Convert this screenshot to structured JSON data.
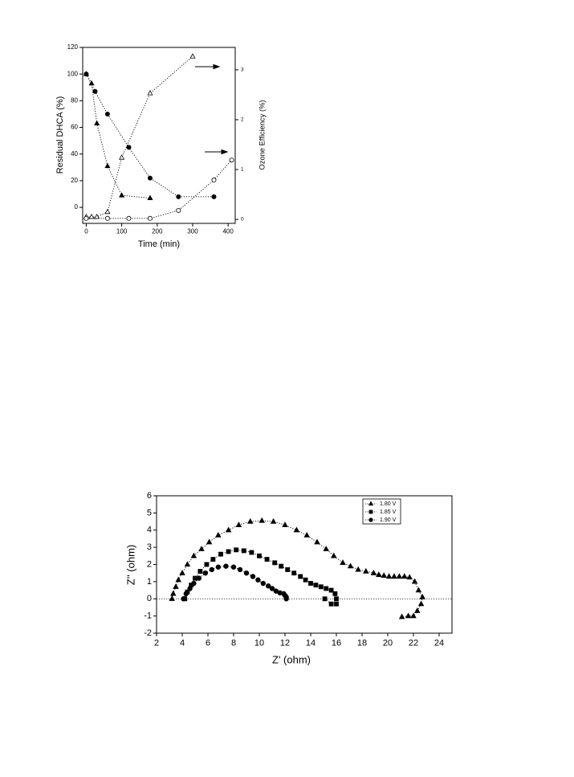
{
  "chart_data": [
    {
      "type": "scatter",
      "xlabel": "Time (min)",
      "ylabel": "Residual DHCA (%)",
      "y2label": "Ozone Efficiency (%)",
      "xlim": [
        -10,
        420
      ],
      "xticks": [
        0,
        100,
        200,
        300,
        400
      ],
      "ylim": [
        -12,
        120
      ],
      "yticks": [
        0,
        20,
        40,
        60,
        80,
        100,
        120
      ],
      "y2lim": [
        -0.08,
        3.45
      ],
      "y2ticks": [
        0,
        1,
        2,
        3
      ],
      "series": [
        {
          "color": "#000000",
          "marker": "triangle",
          "filled": true,
          "line": "dotted",
          "x": [
            0,
            15,
            30,
            60,
            100,
            180
          ],
          "values": [
            100,
            93,
            63,
            31,
            9,
            7
          ]
        },
        {
          "color": "#000000",
          "marker": "circle",
          "filled": true,
          "line": "dotted",
          "x": [
            0,
            25,
            60,
            120,
            180,
            260,
            360
          ],
          "values": [
            100,
            87,
            70,
            45,
            22,
            8,
            8
          ]
        },
        {
          "color": "#000000",
          "marker": "triangle",
          "filled": false,
          "line": "dotted",
          "axis": "y2",
          "x": [
            0,
            15,
            30,
            60,
            100,
            180,
            300
          ],
          "values": [
            0.05,
            0.05,
            0.05,
            0.15,
            1.24,
            2.53,
            3.27
          ]
        },
        {
          "color": "#000000",
          "marker": "circle",
          "filled": false,
          "line": "dotted",
          "axis": "y2",
          "x": [
            0,
            60,
            120,
            180,
            260,
            360,
            410
          ],
          "values": [
            0.02,
            0.02,
            0.02,
            0.02,
            0.18,
            0.79,
            1.19
          ]
        }
      ]
    },
    {
      "type": "scatter",
      "xlabel": "Z' (ohm)",
      "ylabel": "Z'' (ohm)",
      "xlim": [
        2,
        25
      ],
      "xticks": [
        2,
        4,
        6,
        8,
        10,
        12,
        14,
        16,
        18,
        20,
        22,
        24
      ],
      "ylim": [
        -2,
        6
      ],
      "yticks": [
        -2,
        -1,
        0,
        1,
        2,
        3,
        4,
        5,
        6
      ],
      "hline": 0,
      "legend": "top-right",
      "series": [
        {
          "name": "1.80 V",
          "color": "#000000",
          "marker": "triangle",
          "filled": true,
          "line": "dotted",
          "x": [
            3.2,
            3.3,
            3.5,
            3.7,
            4.0,
            4.4,
            4.9,
            5.5,
            6.1,
            6.8,
            7.6,
            8.4,
            9.3,
            10.2,
            11.1,
            12.0,
            12.9,
            13.7,
            14.5,
            15.2,
            15.8,
            16.5,
            17.1,
            17.7,
            18.3,
            18.9,
            19.3,
            19.7,
            20.1,
            20.5,
            20.9,
            21.3,
            21.7,
            22.1,
            22.4,
            22.7,
            22.6,
            22.3,
            22.0,
            21.6,
            21.1
          ],
          "values": [
            0,
            0.3,
            0.7,
            1.1,
            1.5,
            2.0,
            2.5,
            2.9,
            3.3,
            3.7,
            4.0,
            4.3,
            4.5,
            4.55,
            4.5,
            4.3,
            4.0,
            3.7,
            3.3,
            2.9,
            2.5,
            2.1,
            1.9,
            1.7,
            1.6,
            1.5,
            1.4,
            1.35,
            1.3,
            1.3,
            1.3,
            1.3,
            1.25,
            1.0,
            0.5,
            0.1,
            -0.3,
            -0.7,
            -1.0,
            -1.0,
            -1.05
          ]
        },
        {
          "name": "1.85 V",
          "color": "#000000",
          "marker": "square",
          "filled": true,
          "line": "dotted",
          "x": [
            4.2,
            4.4,
            4.7,
            5.0,
            5.4,
            5.9,
            6.4,
            7.0,
            7.6,
            8.2,
            8.8,
            9.4,
            10.0,
            10.6,
            11.2,
            11.7,
            12.2,
            12.7,
            13.2,
            13.6,
            14.0,
            14.4,
            14.8,
            15.2,
            15.6,
            15.9,
            16.0,
            16.0,
            15.6,
            15.1
          ],
          "values": [
            0,
            0.4,
            0.8,
            1.2,
            1.6,
            2.0,
            2.3,
            2.6,
            2.75,
            2.85,
            2.8,
            2.7,
            2.5,
            2.3,
            2.1,
            1.9,
            1.7,
            1.5,
            1.3,
            1.1,
            0.9,
            0.8,
            0.7,
            0.6,
            0.5,
            0.3,
            0,
            -0.3,
            -0.3,
            0
          ]
        },
        {
          "name": "1.90 V",
          "color": "#000000",
          "marker": "circle",
          "filled": true,
          "line": "dotted",
          "x": [
            4.1,
            4.3,
            4.6,
            4.9,
            5.3,
            5.8,
            6.3,
            6.8,
            7.4,
            8.0,
            8.5,
            9.0,
            9.5,
            9.9,
            10.3,
            10.7,
            11.0,
            11.3,
            11.6,
            11.9,
            12.0,
            12.1,
            12.1
          ],
          "values": [
            0,
            0.3,
            0.6,
            0.9,
            1.2,
            1.5,
            1.7,
            1.85,
            1.9,
            1.85,
            1.7,
            1.5,
            1.3,
            1.1,
            0.9,
            0.75,
            0.6,
            0.45,
            0.35,
            0.3,
            0.2,
            0.1,
            0
          ]
        }
      ]
    }
  ]
}
